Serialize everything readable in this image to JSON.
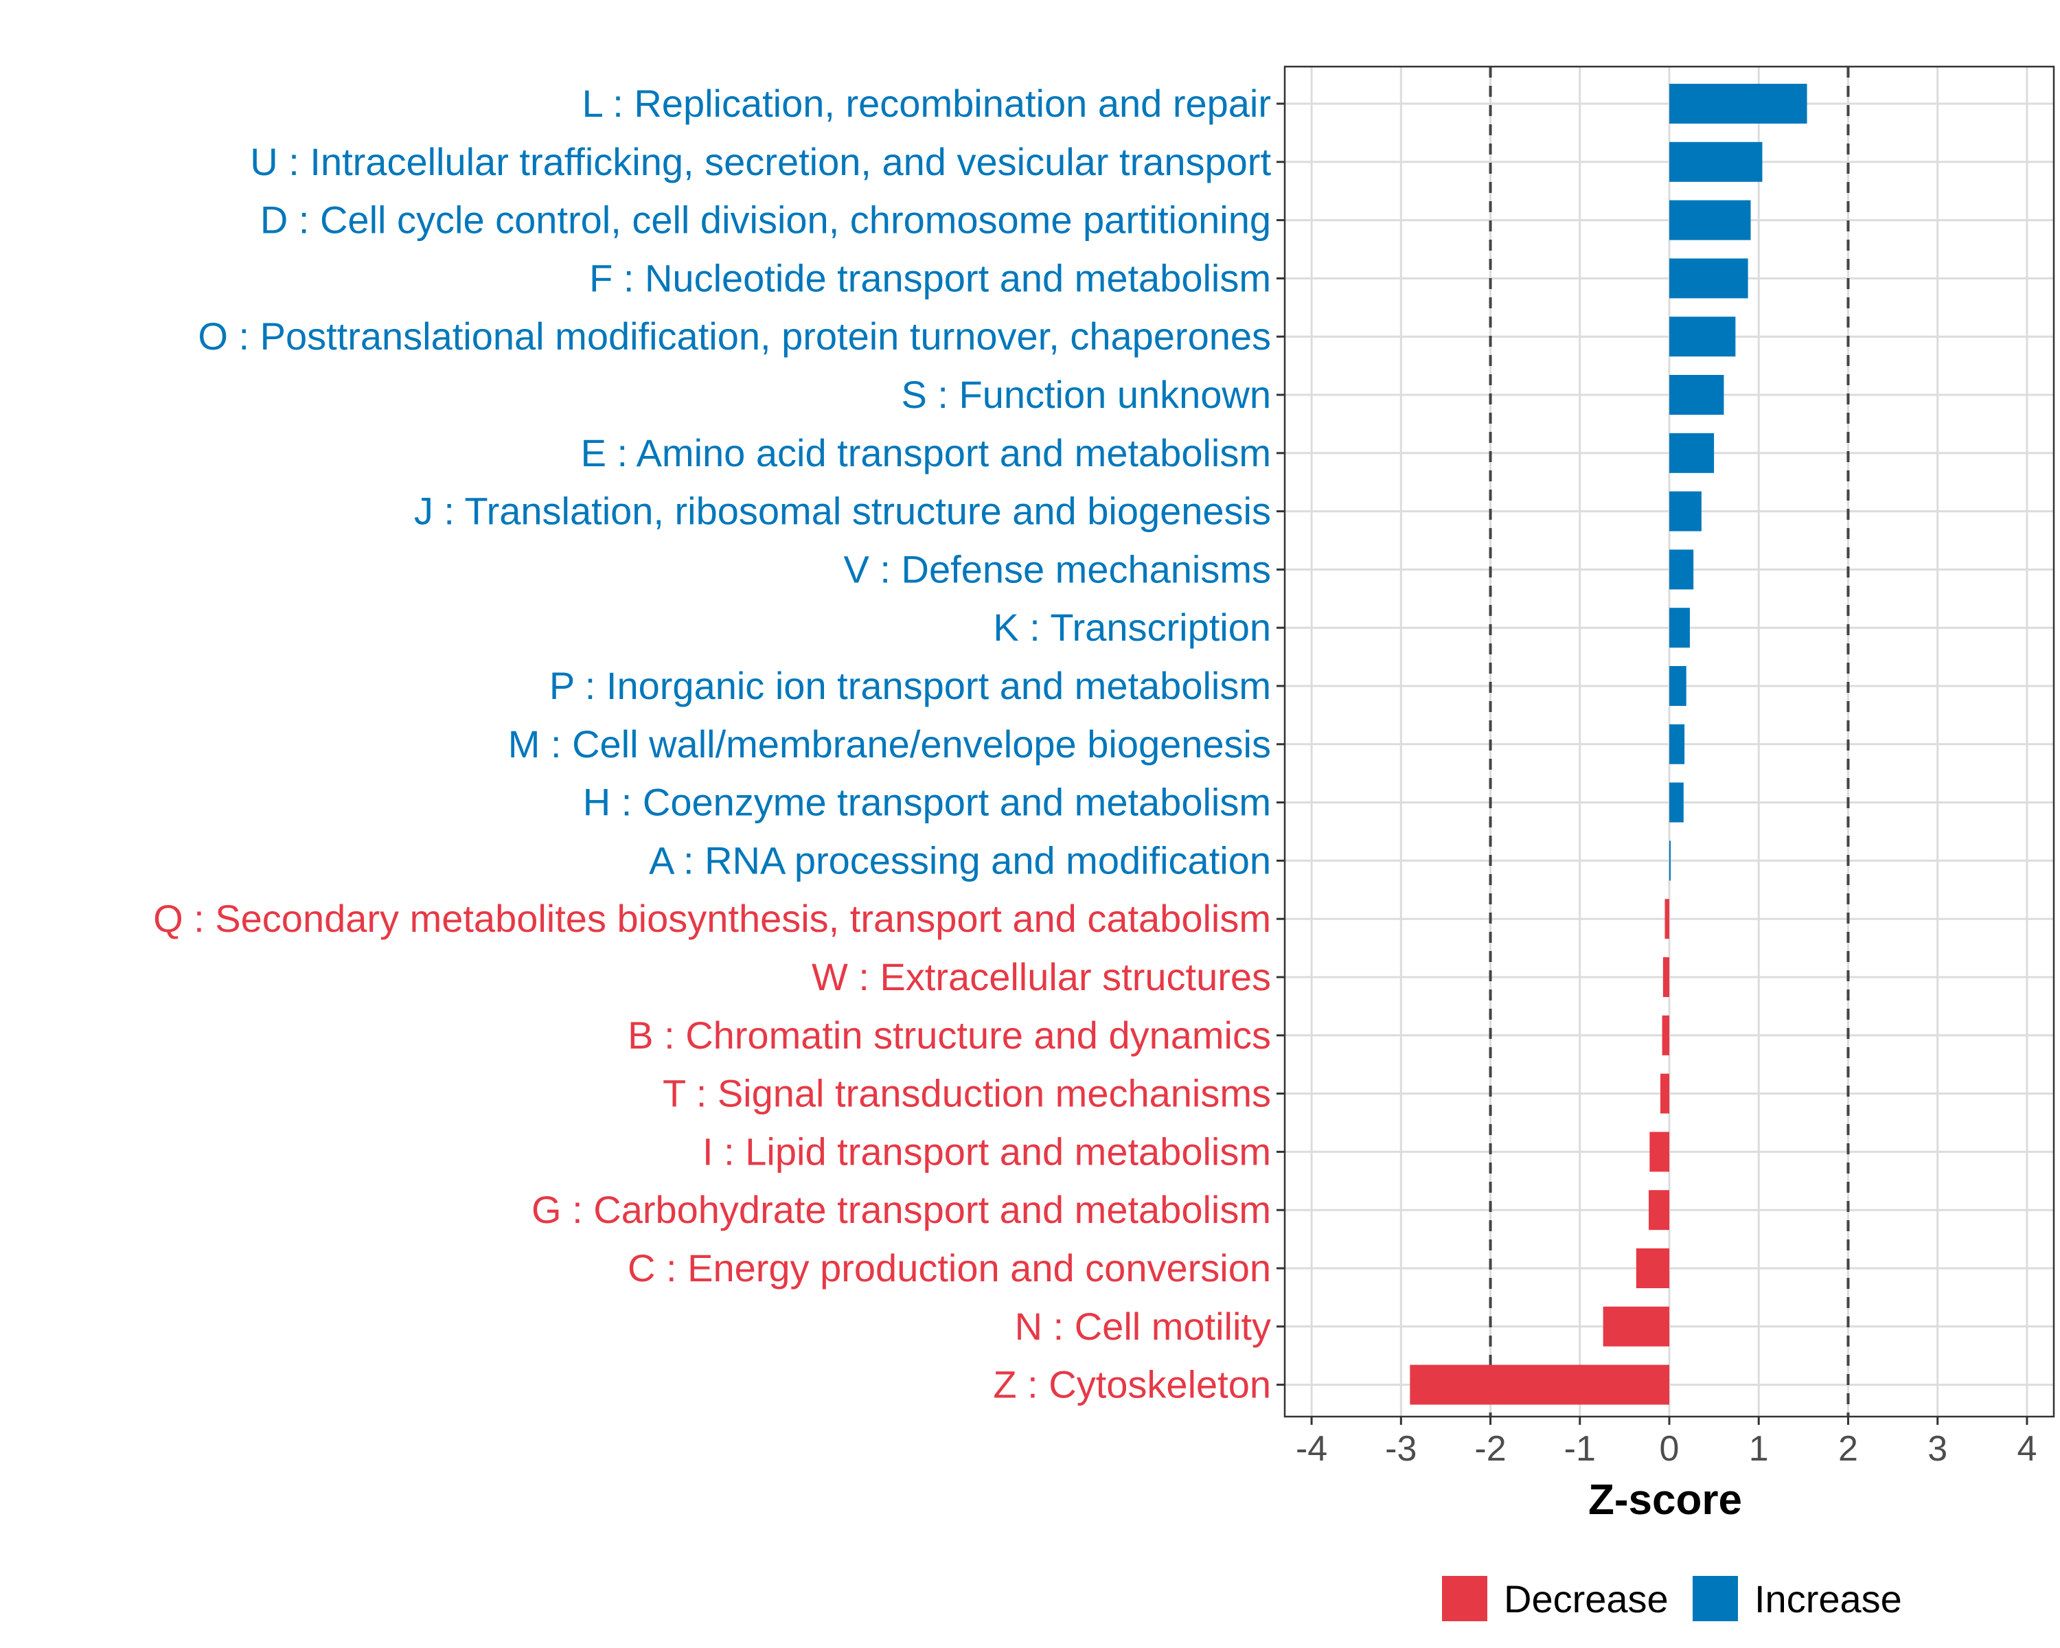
{
  "chart_data": {
    "type": "bar",
    "orientation": "horizontal",
    "xlabel": "Z-score",
    "ylabel": "",
    "xlim": [
      -4.3,
      4.3
    ],
    "xticks": [
      -4,
      -3,
      -2,
      -1,
      0,
      1,
      2,
      3,
      4
    ],
    "reference_lines": [
      -2,
      2
    ],
    "grid": true,
    "legend_position": "bottom",
    "colors": {
      "Decrease": "#E63946",
      "Increase": "#0077BB"
    },
    "legend": [
      {
        "label": "Decrease",
        "color": "#E63946"
      },
      {
        "label": "Increase",
        "color": "#0077BB"
      }
    ],
    "categories": [
      "L : Replication, recombination and repair",
      "U : Intracellular trafficking, secretion, and vesicular transport",
      "D : Cell cycle control, cell division, chromosome partitioning",
      "F : Nucleotide transport and metabolism",
      "O : Posttranslational modification, protein turnover, chaperones",
      "S : Function unknown",
      "E : Amino acid transport and metabolism",
      "J : Translation, ribosomal structure and biogenesis",
      "V : Defense mechanisms",
      "K : Transcription",
      "P : Inorganic ion transport and metabolism",
      "M : Cell wall/membrane/envelope biogenesis",
      "H : Coenzyme transport and metabolism",
      "A : RNA processing and modification",
      "Q : Secondary metabolites biosynthesis, transport and catabolism",
      "W : Extracellular structures",
      "B : Chromatin structure and dynamics",
      "T : Signal transduction mechanisms",
      "I : Lipid transport and metabolism",
      "G : Carbohydrate transport and metabolism",
      "C : Energy production and conversion",
      "N : Cell motility",
      "Z : Cytoskeleton"
    ],
    "values": [
      1.54,
      1.04,
      0.91,
      0.88,
      0.74,
      0.61,
      0.5,
      0.36,
      0.27,
      0.23,
      0.19,
      0.17,
      0.16,
      0.01,
      -0.05,
      -0.07,
      -0.08,
      -0.1,
      -0.22,
      -0.23,
      -0.37,
      -0.74,
      -2.9
    ],
    "groups": [
      "Increase",
      "Increase",
      "Increase",
      "Increase",
      "Increase",
      "Increase",
      "Increase",
      "Increase",
      "Increase",
      "Increase",
      "Increase",
      "Increase",
      "Increase",
      "Increase",
      "Decrease",
      "Decrease",
      "Decrease",
      "Decrease",
      "Decrease",
      "Decrease",
      "Decrease",
      "Decrease",
      "Decrease"
    ]
  }
}
